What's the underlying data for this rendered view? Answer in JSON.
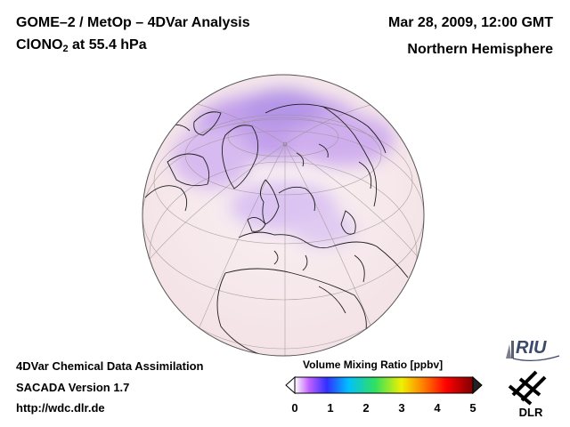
{
  "header": {
    "title_line1": "GOME–2 / MetOp – 4DVar Analysis",
    "species_main": "ClONO",
    "species_sub": "2",
    "species_suffix": " at 55.4 hPa",
    "date": "Mar 28, 2009, 12:00 GMT",
    "region": "Northern Hemisphere"
  },
  "footer": {
    "line1": "4DVar Chemical Data Assimilation",
    "line2": "SACADA Version 1.7",
    "line3": "http://wdc.dlr.de"
  },
  "colorbar": {
    "title": "Volume Mixing Ratio [ppbv]",
    "ticks": [
      "0",
      "1",
      "2",
      "3",
      "4",
      "5"
    ],
    "range": [
      0,
      5
    ],
    "colors": [
      "#ffffff",
      "#c060ff",
      "#3030ff",
      "#00c0ff",
      "#30e060",
      "#f0f000",
      "#ff8000",
      "#ff0000",
      "#800000"
    ]
  },
  "map": {
    "projection": "orthographic",
    "background_color": "#f6e6ea",
    "high_color": "#b48ee8",
    "grid": true
  },
  "logos": {
    "riu": "RIU",
    "dlr": "DLR"
  }
}
